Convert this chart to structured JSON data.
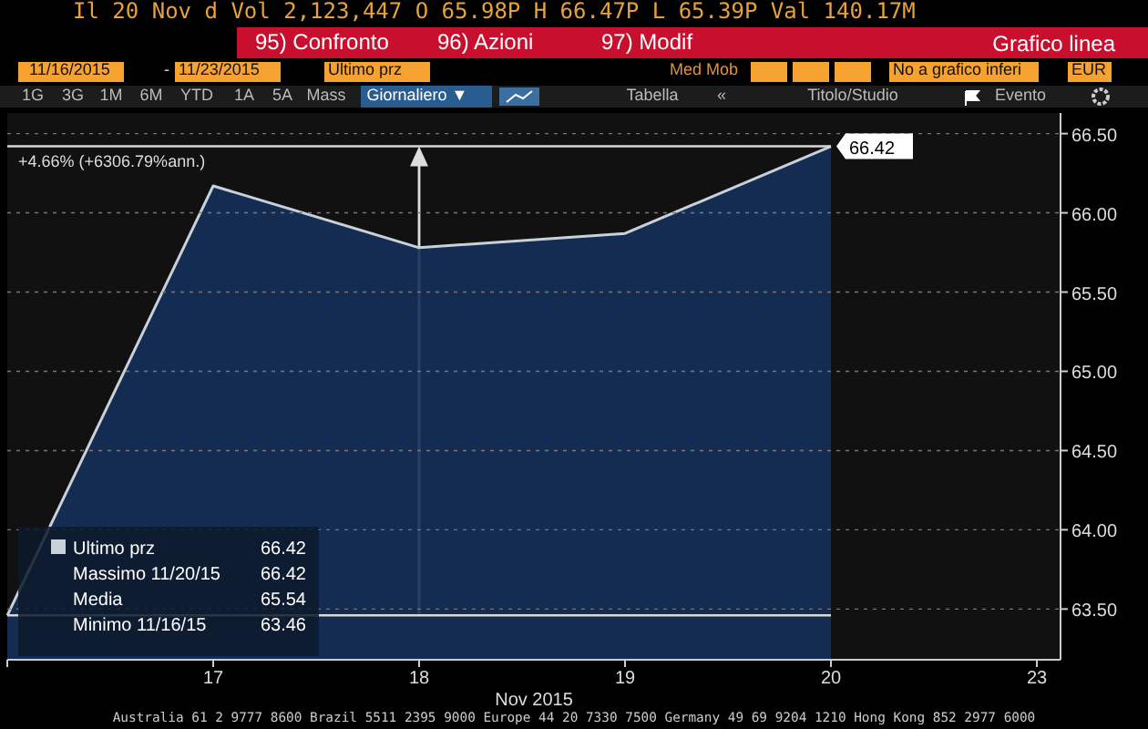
{
  "chart_data": {
    "type": "area",
    "xlabel": "Nov 2015",
    "categories": [
      null,
      "17",
      "18",
      "19",
      "20",
      "23"
    ],
    "series": [
      {
        "name": "Ultimo prz",
        "color": "#c8d0da",
        "values": [
          63.46,
          66.17,
          65.78,
          65.87,
          66.42,
          null
        ],
        "value_labels": [
          null,
          null,
          null,
          null,
          "66.42",
          null
        ]
      }
    ],
    "ylim": [
      63.18,
      66.63
    ],
    "yticks": [
      {
        "value": 63.5,
        "label": "63.50"
      },
      {
        "value": 64,
        "label": "64.00"
      },
      {
        "value": 64.5,
        "label": "64.50"
      },
      {
        "value": 65,
        "label": "65.00"
      },
      {
        "value": 65.5,
        "label": "65.50"
      },
      {
        "value": 66,
        "label": "66.00"
      },
      {
        "value": 66.5,
        "label": "66.50"
      }
    ],
    "grid": "y",
    "legend": "bottom left",
    "ref_lines": [
      {
        "axis": "y",
        "value": 66.42,
        "label": "+4.66% (+6306.79%ann.)",
        "color": "#d8d8d8"
      },
      {
        "axis": "y",
        "value": 63.46,
        "color": "#d8d8d8"
      }
    ],
    "annotations": [
      "Il 20 Nov d  Vol 2,123,447   O 65.98P    H 66.47P    L 65.39P    Val 140.17M",
      "95) Confronto",
      "96) Azioni",
      "97) Modif",
      "Grafico linea",
      "11/16/2015",
      "-",
      "11/23/2015",
      "Ultimo prz",
      "Med Mob",
      "No a grafico inferi",
      "EUR",
      "1G",
      "3G",
      "1M",
      "6M",
      "YTD",
      "1A",
      "5A",
      "Mass",
      "Giornaliero ▼",
      "Tabella",
      "«",
      "Titolo/Studio",
      "Evento",
      "Massimo 11/20/15 66.42",
      "Media 65.54",
      "Minimo 11/16/15 63.46",
      "Australia 61 2 9777 8600 Brazil 5511 2395 9000 Europe 44 20 7330 7500 Germany 49 69 9204 1210 Hong Kong 852 2977 6000"
    ]
  }
}
